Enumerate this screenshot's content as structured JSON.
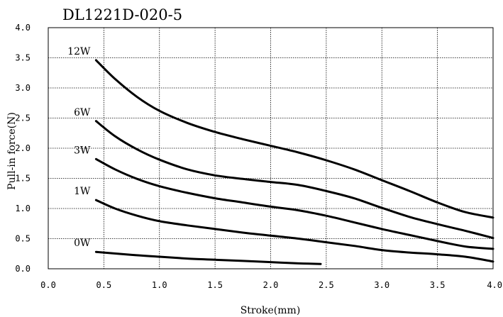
{
  "chart_data": {
    "type": "line",
    "title": "DL1221D-020-5",
    "xlabel": "Stroke(mm)",
    "ylabel": "Pull-in force(N)",
    "xlim": [
      0,
      4
    ],
    "ylim": [
      0,
      4
    ],
    "xticks": [
      "0.0",
      "0.5",
      "1.0",
      "1.5",
      "2.0",
      "2.5",
      "3.0",
      "3.5",
      "4.0"
    ],
    "yticks": [
      "0.0",
      "0.5",
      "1.0",
      "1.5",
      "2.0",
      "2.5",
      "3.0",
      "3.5",
      "4.0"
    ],
    "grid": true,
    "series": [
      {
        "name": "12W",
        "x": [
          0.43,
          0.6,
          0.8,
          1.0,
          1.25,
          1.5,
          1.75,
          2.0,
          2.25,
          2.5,
          2.75,
          3.0,
          3.25,
          3.5,
          3.75,
          4.0
        ],
        "y": [
          3.46,
          3.15,
          2.85,
          2.62,
          2.42,
          2.27,
          2.15,
          2.04,
          1.93,
          1.8,
          1.65,
          1.47,
          1.29,
          1.1,
          0.94,
          0.85
        ]
      },
      {
        "name": "6W",
        "x": [
          0.43,
          0.6,
          0.8,
          1.0,
          1.25,
          1.5,
          1.75,
          2.0,
          2.25,
          2.5,
          2.75,
          3.0,
          3.25,
          3.5,
          3.75,
          4.0
        ],
        "y": [
          2.45,
          2.2,
          1.98,
          1.81,
          1.65,
          1.55,
          1.49,
          1.44,
          1.39,
          1.29,
          1.17,
          1.01,
          0.86,
          0.74,
          0.63,
          0.51
        ]
      },
      {
        "name": "3W",
        "x": [
          0.43,
          0.6,
          0.8,
          1.0,
          1.25,
          1.5,
          1.75,
          2.0,
          2.25,
          2.5,
          2.75,
          3.0,
          3.25,
          3.5,
          3.75,
          4.0
        ],
        "y": [
          1.82,
          1.65,
          1.49,
          1.37,
          1.26,
          1.17,
          1.1,
          1.03,
          0.97,
          0.88,
          0.77,
          0.66,
          0.56,
          0.46,
          0.37,
          0.33
        ]
      },
      {
        "name": "1W",
        "x": [
          0.43,
          0.6,
          0.8,
          1.0,
          1.25,
          1.5,
          1.75,
          2.0,
          2.25,
          2.5,
          2.75,
          3.0,
          3.25,
          3.5,
          3.75,
          4.0
        ],
        "y": [
          1.14,
          1.0,
          0.88,
          0.79,
          0.72,
          0.66,
          0.6,
          0.55,
          0.5,
          0.44,
          0.38,
          0.31,
          0.27,
          0.24,
          0.2,
          0.12
        ]
      },
      {
        "name": "0W",
        "x": [
          0.43,
          0.75,
          1.0,
          1.25,
          1.5,
          1.75,
          2.0,
          2.25,
          2.45
        ],
        "y": [
          0.28,
          0.23,
          0.2,
          0.17,
          0.15,
          0.13,
          0.11,
          0.09,
          0.08
        ]
      }
    ]
  }
}
